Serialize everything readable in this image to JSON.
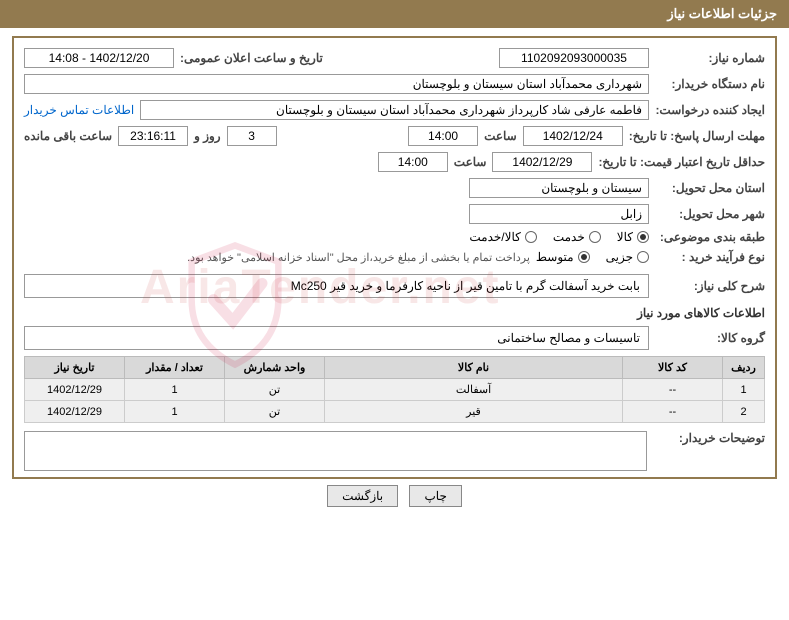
{
  "header": {
    "title": "جزئیات اطلاعات نیاز"
  },
  "fields": {
    "need_no_label": "شماره نیاز:",
    "need_no": "1102092093000035",
    "announce_label": "تاریخ و ساعت اعلان عمومی:",
    "announce_value": "1402/12/20 - 14:08",
    "buyer_org_label": "نام دستگاه خریدار:",
    "buyer_org": "شهرداری محمدآباد استان سیستان و بلوچستان",
    "requester_label": "ایجاد کننده درخواست:",
    "requester": "فاطمه عارفی شاد کارپرداز شهرداری محمدآباد استان سیستان و بلوچستان",
    "contact_link": "اطلاعات تماس خریدار",
    "reply_deadline_label": "مهلت ارسال پاسخ: تا تاریخ:",
    "reply_date": "1402/12/24",
    "time_label": "ساعت",
    "reply_time": "14:00",
    "remain_days": "3",
    "days_and": "روز و",
    "remain_hms": "23:16:11",
    "remain_suffix": "ساعت باقی مانده",
    "price_validity_label": "حداقل تاریخ اعتبار قیمت: تا تاریخ:",
    "price_date": "1402/12/29",
    "price_time": "14:00",
    "deliv_province_label": "استان محل تحویل:",
    "deliv_province": "سیستان و بلوچستان",
    "deliv_city_label": "شهر محل تحویل:",
    "deliv_city": "زابل",
    "class_label": "طبقه بندی موضوعی:",
    "class_options": [
      "کالا",
      "خدمت",
      "کالا/خدمت"
    ],
    "class_selected": 0,
    "proc_label": "نوع فرآیند خرید :",
    "proc_options": [
      "جزیی",
      "متوسط"
    ],
    "proc_selected": 1,
    "proc_note": "پرداخت تمام یا بخشی از مبلغ خرید،از محل \"اسناد خزانه اسلامی\" خواهد بود.",
    "desc_label": "شرح کلی نیاز:",
    "desc_value": "بابت خرید آسفالت گرم با تامین قیر از ناحیه کارفرما و خرید قیر Mc250",
    "items_title": "اطلاعات کالاهای مورد نیاز",
    "group_label": "گروه کالا:",
    "group_value": "تاسیسات و مصالح ساختمانی",
    "buyer_notes_label": "توضیحات خریدار:"
  },
  "table": {
    "headers": [
      "ردیف",
      "کد کالا",
      "نام کالا",
      "واحد شمارش",
      "تعداد / مقدار",
      "تاریخ نیاز"
    ],
    "rows": [
      [
        "1",
        "--",
        "آسفالت",
        "تن",
        "1",
        "1402/12/29"
      ],
      [
        "2",
        "--",
        "قیر",
        "تن",
        "1",
        "1402/12/29"
      ]
    ]
  },
  "buttons": {
    "print": "چاپ",
    "back": "بازگشت"
  },
  "colors": {
    "header_bg": "#927a4f",
    "border": "#927a4f"
  }
}
